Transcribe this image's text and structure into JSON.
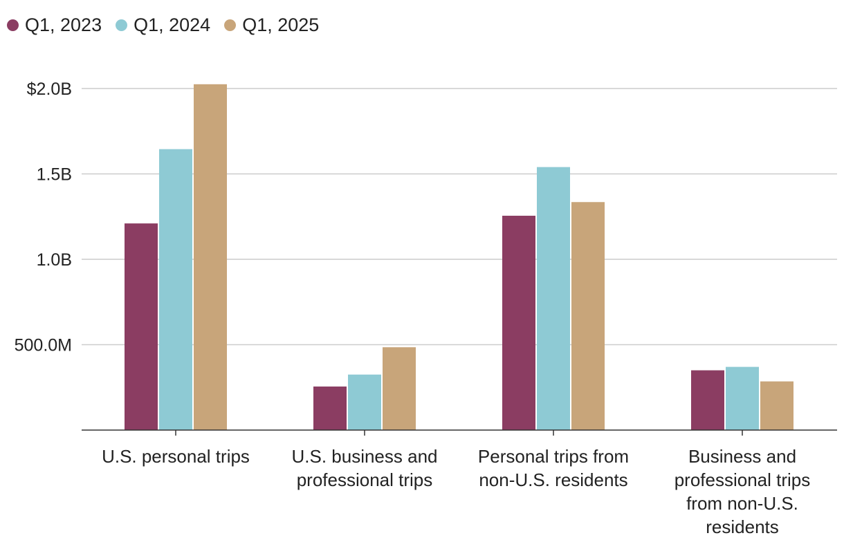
{
  "chart_data": {
    "type": "bar",
    "title": "",
    "xlabel": "",
    "ylabel": "",
    "categories": [
      [
        "U.S. personal trips"
      ],
      [
        "U.S. business and",
        "professional trips"
      ],
      [
        "Personal trips from",
        "non-U.S. residents"
      ],
      [
        "Business and",
        "professional trips",
        "from non-U.S.",
        "residents"
      ]
    ],
    "series": [
      {
        "name": "Q1, 2023",
        "color": "#8b3d62",
        "values": [
          1.21,
          0.255,
          1.255,
          0.35
        ]
      },
      {
        "name": "Q1, 2024",
        "color": "#8ecad4",
        "values": [
          1.645,
          0.325,
          1.54,
          0.37
        ]
      },
      {
        "name": "Q1, 2025",
        "color": "#c8a57a",
        "values": [
          2.025,
          0.485,
          1.335,
          0.285
        ]
      }
    ],
    "ylim": [
      0,
      2.0
    ],
    "unit": "billions of dollars",
    "yticks": [
      {
        "value": 0.5,
        "label": "500.0M"
      },
      {
        "value": 1.0,
        "label": "1.0B"
      },
      {
        "value": 1.5,
        "label": "1.5B"
      },
      {
        "value": 2.0,
        "label": "$2.0B"
      }
    ],
    "grid": true,
    "legend": "top-left"
  }
}
